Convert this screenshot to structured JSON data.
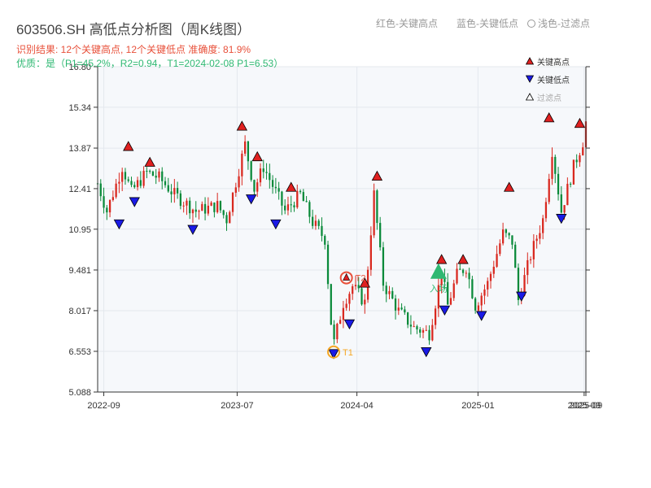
{
  "title": "603506.SH 高低点分析图（周K线图）",
  "header_legend": {
    "red": "红色-关键高点",
    "blue": "蓝色-关键低点",
    "faint": "浅色-过滤点"
  },
  "info": {
    "line1": "识别结果: 12个关键高点, 12个关键低点   准确度: 81.9%",
    "line2": "优质：是（P1=45.2%，R2=0.94，T1=2024-02-08 P1=6.53）"
  },
  "legend": {
    "items": [
      {
        "label": "关键高点",
        "icon": "triangle-up",
        "color": "#e02020"
      },
      {
        "label": "关键低点",
        "icon": "triangle-down",
        "color": "#1a1ae6"
      },
      {
        "label": "过滤点",
        "icon": "triangle-up-outline",
        "color": "#cccccc"
      }
    ]
  },
  "colors": {
    "up": "#d9281f",
    "down": "#0a8a3a",
    "key_high": "#e02020",
    "key_low": "#1a1ae6",
    "t1": "#f5a623",
    "t2": "#e8503a",
    "entry": "#2eb872",
    "plot_bg": "#f6f8fb",
    "grid": "#e4e8ee"
  },
  "chart_data": {
    "type": "candlestick",
    "ylim": [
      5.088,
      16.8
    ],
    "yticks": [
      "5.088",
      "6.553",
      "8.017",
      "9.481",
      "10.95",
      "12.41",
      "13.87",
      "15.34",
      "16.80"
    ],
    "x_start": "2022-08-19",
    "x_end": "2025-09-05",
    "xticks": [
      {
        "date": "2022-09-02",
        "label": "2022-09"
      },
      {
        "date": "2023-07-03",
        "label": "2023-07"
      },
      {
        "date": "2024-04-01",
        "label": "2024-04"
      },
      {
        "date": "2025-01-02",
        "label": "2025-01"
      },
      {
        "date": "2025-09-01",
        "label": "2025-09"
      },
      {
        "date": "2025-09-05",
        "label": "2025-09"
      }
    ],
    "anchors": [
      [
        "2022-08-19",
        12.6
      ],
      [
        "2022-09-09",
        11.6
      ],
      [
        "2022-10-14",
        13.2
      ],
      [
        "2022-11-04",
        12.3
      ],
      [
        "2022-12-09",
        13.0
      ],
      [
        "2023-01-06",
        12.8
      ],
      [
        "2023-02-10",
        12.2
      ],
      [
        "2023-03-31",
        11.6
      ],
      [
        "2023-05-19",
        11.8
      ],
      [
        "2023-06-09",
        11.3
      ],
      [
        "2023-07-21",
        14.0
      ],
      [
        "2023-08-11",
        12.4
      ],
      [
        "2023-09-01",
        13.2
      ],
      [
        "2023-10-20",
        11.6
      ],
      [
        "2023-11-24",
        12.2
      ],
      [
        "2023-12-22",
        11.2
      ],
      [
        "2024-01-19",
        10.6
      ],
      [
        "2024-02-02",
        7.6
      ],
      [
        "2024-02-08",
        6.8
      ],
      [
        "2024-03-01",
        8.3
      ],
      [
        "2024-03-22",
        8.9
      ],
      [
        "2024-04-19",
        8.3
      ],
      [
        "2024-05-10",
        12.2
      ],
      [
        "2024-05-31",
        9.0
      ],
      [
        "2024-07-05",
        8.0
      ],
      [
        "2024-08-09",
        7.4
      ],
      [
        "2024-09-13",
        7.2
      ],
      [
        "2024-10-11",
        9.4
      ],
      [
        "2024-10-25",
        8.2
      ],
      [
        "2024-11-15",
        9.3
      ],
      [
        "2024-12-06",
        9.6
      ],
      [
        "2024-12-27",
        8.2
      ],
      [
        "2025-01-24",
        9.0
      ],
      [
        "2025-02-28",
        10.8
      ],
      [
        "2025-03-21",
        10.5
      ],
      [
        "2025-04-04",
        8.4
      ],
      [
        "2025-05-02",
        10.0
      ],
      [
        "2025-05-30",
        11.3
      ],
      [
        "2025-06-20",
        13.8
      ],
      [
        "2025-07-11",
        11.6
      ],
      [
        "2025-08-08",
        13.2
      ],
      [
        "2025-08-29",
        14.1
      ],
      [
        "2025-09-05",
        14.8
      ]
    ],
    "key_highs": [
      [
        "2022-10-28",
        13.87
      ],
      [
        "2022-12-16",
        13.3
      ],
      [
        "2023-07-14",
        14.6
      ],
      [
        "2023-08-18",
        13.5
      ],
      [
        "2023-11-03",
        12.4
      ],
      [
        "2024-04-19",
        8.95
      ],
      [
        "2024-05-17",
        12.8
      ],
      [
        "2024-10-11",
        9.8
      ],
      [
        "2024-11-29",
        9.8
      ],
      [
        "2025-03-14",
        12.4
      ],
      [
        "2025-06-13",
        14.9
      ],
      [
        "2025-08-22",
        14.7
      ]
    ],
    "key_lows": [
      [
        "2022-10-07",
        11.2
      ],
      [
        "2022-11-11",
        12.0
      ],
      [
        "2023-03-24",
        11.0
      ],
      [
        "2023-08-04",
        12.1
      ],
      [
        "2023-09-29",
        11.2
      ],
      [
        "2024-02-08",
        6.53
      ],
      [
        "2024-03-15",
        7.6
      ],
      [
        "2024-09-06",
        6.6
      ],
      [
        "2024-10-18",
        8.1
      ],
      [
        "2025-01-10",
        7.9
      ],
      [
        "2025-04-11",
        8.6
      ],
      [
        "2025-07-11",
        11.4
      ]
    ],
    "t1": {
      "label": "T1",
      "date": "2024-02-08",
      "value": 6.53
    },
    "t2": {
      "label": "T2",
      "date": "2024-03-08",
      "value": 9.2
    },
    "entry": {
      "label": "入场",
      "date": "2024-10-04",
      "value": 9.4
    }
  }
}
